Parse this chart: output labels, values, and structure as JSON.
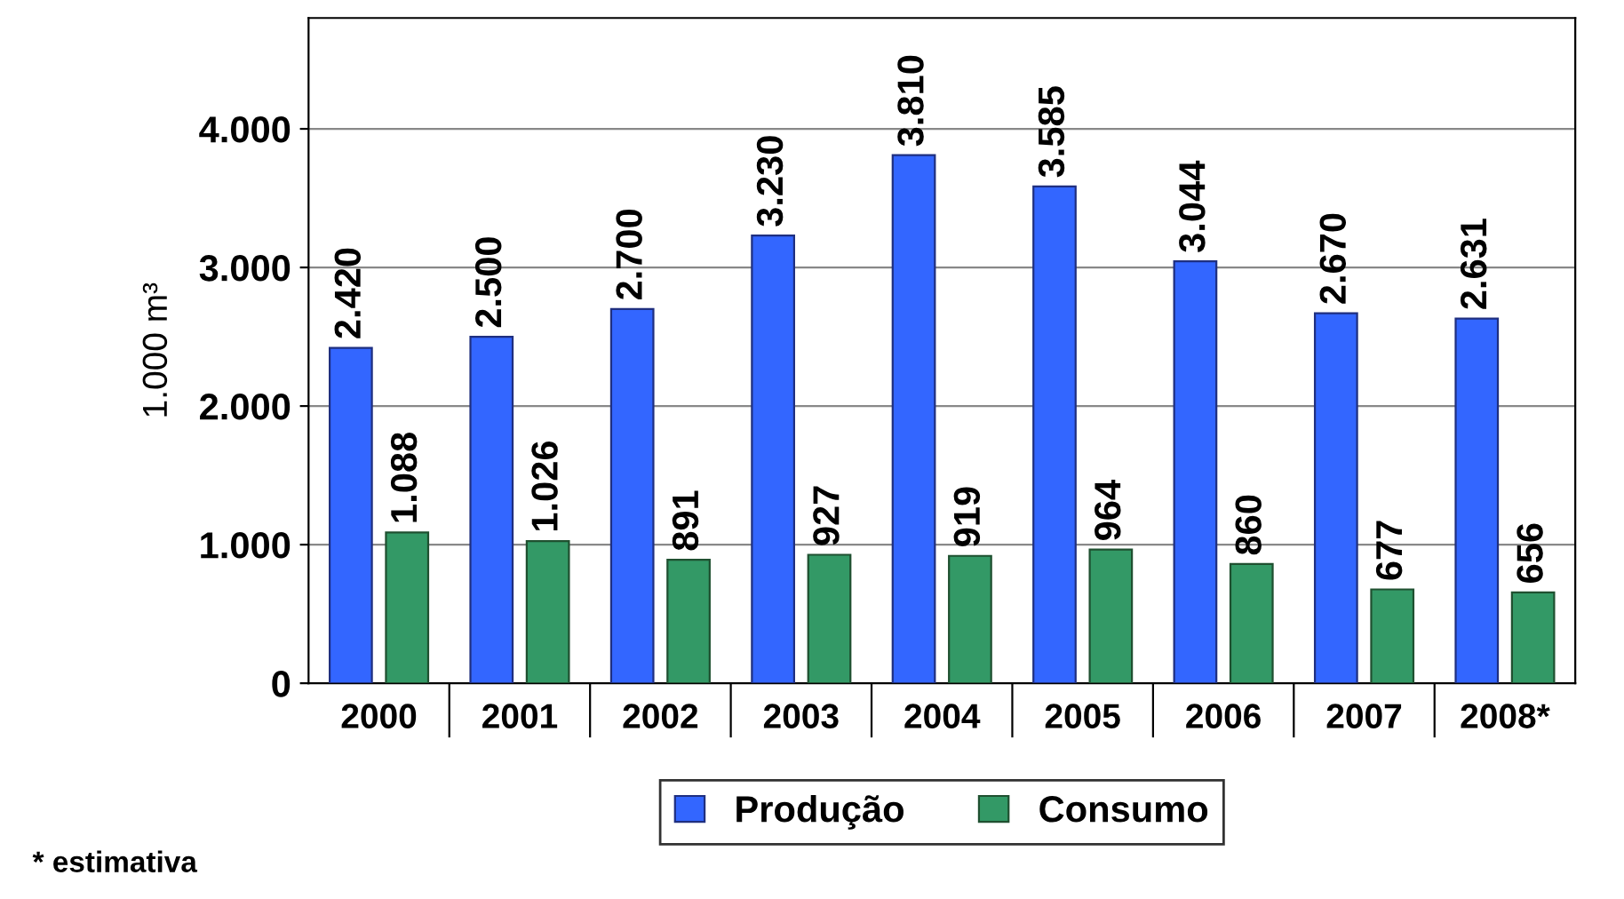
{
  "chart_data": {
    "type": "bar",
    "ylabel": "1.000 m³",
    "categories": [
      "2000",
      "2001",
      "2002",
      "2003",
      "2004",
      "2005",
      "2006",
      "2007",
      "2008*"
    ],
    "series": [
      {
        "name": "Produção",
        "color": "#3366ff",
        "values": [
          2420,
          2500,
          2700,
          3230,
          3810,
          3585,
          3044,
          2670,
          2631
        ],
        "value_labels": [
          "2.420",
          "2.500",
          "2.700",
          "3.230",
          "3.810",
          "3.585",
          "3.044",
          "2.670",
          "2.631"
        ]
      },
      {
        "name": "Consumo",
        "color": "#339966",
        "values": [
          1088,
          1026,
          891,
          927,
          919,
          964,
          860,
          677,
          656
        ],
        "value_labels": [
          "1.088",
          "1.026",
          "891",
          "927",
          "919",
          "964",
          "860",
          "677",
          "656"
        ]
      }
    ],
    "ylim": [
      0,
      4800
    ],
    "yticks": [
      0,
      {
        "value": 1000,
        "label": "1.000"
      },
      {
        "value": 2000,
        "label": "2.000"
      },
      {
        "value": 3000,
        "label": "3.000"
      },
      {
        "value": 4000,
        "label": "4.000"
      }
    ],
    "grid": "y",
    "legend": "bottom",
    "annotations": [
      "* estimativa"
    ]
  }
}
